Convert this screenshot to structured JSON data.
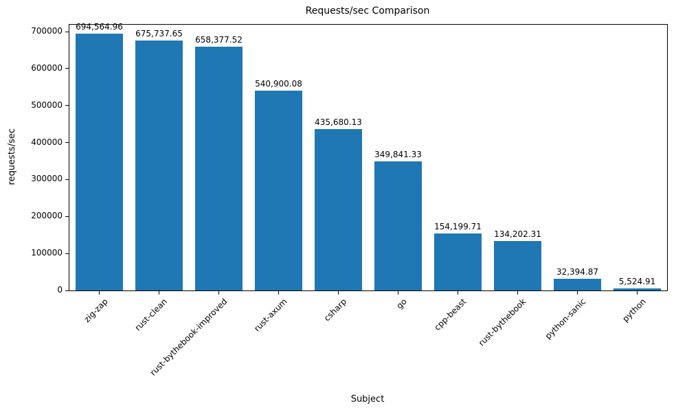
{
  "chart_data": {
    "type": "bar",
    "title": "Requests/sec Comparison",
    "xlabel": "Subject",
    "ylabel": "requests/sec",
    "categories": [
      "zig-zap",
      "rust-clean",
      "rust-bythebook-improved",
      "rust-axum",
      "csharp",
      "go",
      "cpp-beast",
      "rust-bythebook",
      "python-sanic",
      "python"
    ],
    "values": [
      694564.96,
      675737.65,
      658377.52,
      540900.08,
      435680.13,
      349841.33,
      154199.71,
      134202.31,
      32394.87,
      5524.91
    ],
    "value_labels": [
      "694,564.96",
      "675,737.65",
      "658,377.52",
      "540,900.08",
      "435,680.13",
      "349,841.33",
      "154,199.71",
      "134,202.31",
      "32,394.87",
      "5,524.91"
    ],
    "ylim": [
      0,
      700000
    ],
    "ytick_step": 100000,
    "bar_color": "#1f77b4",
    "grid": false,
    "legend": "none"
  }
}
